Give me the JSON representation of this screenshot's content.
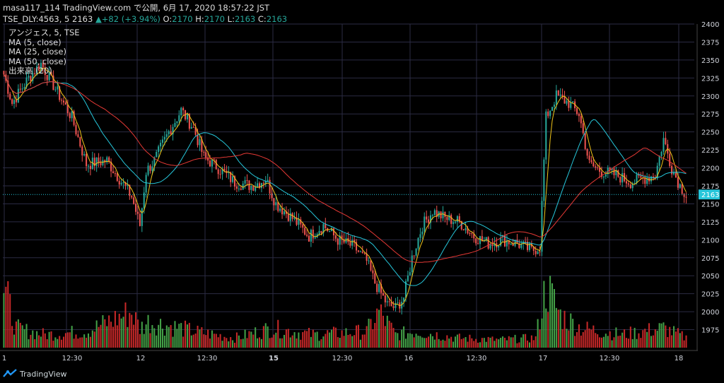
{
  "header": {
    "line1": "masa117_114 TradingView.com で公開, 6月 17, 2020 18:57:22 JST",
    "symbol": "TSE_DLY:4563, 5",
    "price": "2163",
    "arrow": "▲",
    "change": "+82 (+3.94%)",
    "o_label": "O:",
    "o_value": "2170",
    "h_label": "H:",
    "h_value": "2170",
    "l_label": "L:",
    "l_value": "2163",
    "c_label": "C:",
    "c_value": "2163"
  },
  "legend": {
    "instrument": "アンジェス, 5, TSE",
    "ma5": "MA (5, close)",
    "ma25": "MA (25, close)",
    "ma50": "MA (50, close)",
    "volume": "出来高 (20)"
  },
  "brand": {
    "name": "TradingView"
  },
  "colors": {
    "background": "#000000",
    "grid": "#2b2b43",
    "up": "#26a69a",
    "down": "#ef5350",
    "ma5": "#f0c419",
    "ma25": "#26c6da",
    "ma50": "#e53935",
    "last_price": "#26c6da",
    "axis_text": "#d1d4dc"
  },
  "chart_data": {
    "type": "candlestick",
    "y_axis": {
      "ylim": [
        1950,
        2400
      ],
      "ticks": [
        1975,
        2000,
        2025,
        2050,
        2075,
        2100,
        2125,
        2150,
        2175,
        2200,
        2225,
        2250,
        2275,
        2300,
        2325,
        2350,
        2375,
        2400
      ],
      "position": "right"
    },
    "x_axis": {
      "ticks": [
        "1",
        "12:30",
        "12",
        "12:30",
        "15",
        "12:30",
        "16",
        "12:30",
        "17",
        "12:30",
        "18"
      ],
      "bold_ticks": [
        "15"
      ]
    },
    "last_price": 2163,
    "moving_averages": [
      {
        "name": "MA (5, close)",
        "period": 5
      },
      {
        "name": "MA (25, close)",
        "period": 25
      },
      {
        "name": "MA (50, close)",
        "period": 50
      }
    ],
    "volume_series": {
      "name": "出来高 (20)"
    },
    "close_anchors": [
      [
        0,
        2330
      ],
      [
        4,
        2290
      ],
      [
        12,
        2325
      ],
      [
        18,
        2345
      ],
      [
        25,
        2310
      ],
      [
        33,
        2270
      ],
      [
        40,
        2205
      ],
      [
        50,
        2210
      ],
      [
        56,
        2185
      ],
      [
        62,
        2160
      ],
      [
        66,
        2120
      ],
      [
        69,
        2195
      ],
      [
        73,
        2210
      ],
      [
        80,
        2250
      ],
      [
        86,
        2280
      ],
      [
        92,
        2255
      ],
      [
        97,
        2215
      ],
      [
        104,
        2200
      ],
      [
        112,
        2180
      ],
      [
        120,
        2175
      ],
      [
        124,
        2180
      ],
      [
        127,
        2185
      ],
      [
        132,
        2150
      ],
      [
        140,
        2130
      ],
      [
        148,
        2105
      ],
      [
        155,
        2120
      ],
      [
        162,
        2100
      ],
      [
        170,
        2090
      ],
      [
        176,
        2070
      ],
      [
        180,
        2040
      ],
      [
        186,
        2010
      ],
      [
        190,
        2005
      ],
      [
        194,
        2020
      ],
      [
        198,
        2075
      ],
      [
        203,
        2120
      ],
      [
        208,
        2140
      ],
      [
        214,
        2130
      ],
      [
        221,
        2125
      ],
      [
        228,
        2105
      ],
      [
        235,
        2095
      ],
      [
        242,
        2100
      ],
      [
        249,
        2095
      ],
      [
        256,
        2085
      ],
      [
        260,
        2090
      ],
      [
        263,
        2270
      ],
      [
        268,
        2300
      ],
      [
        274,
        2290
      ],
      [
        279,
        2275
      ],
      [
        284,
        2205
      ],
      [
        290,
        2195
      ],
      [
        297,
        2190
      ],
      [
        304,
        2180
      ],
      [
        310,
        2185
      ],
      [
        316,
        2190
      ],
      [
        320,
        2240
      ],
      [
        324,
        2200
      ],
      [
        328,
        2175
      ],
      [
        331,
        2163
      ]
    ],
    "volume_anchors": [
      [
        0,
        0.9
      ],
      [
        6,
        0.3
      ],
      [
        12,
        0.25
      ],
      [
        20,
        0.2
      ],
      [
        40,
        0.25
      ],
      [
        62,
        0.55
      ],
      [
        66,
        0.3
      ],
      [
        70,
        0.4
      ],
      [
        86,
        0.3
      ],
      [
        92,
        0.25
      ],
      [
        112,
        0.15
      ],
      [
        130,
        0.3
      ],
      [
        150,
        0.2
      ],
      [
        176,
        0.25
      ],
      [
        182,
        0.55
      ],
      [
        190,
        0.2
      ],
      [
        200,
        0.25
      ],
      [
        220,
        0.15
      ],
      [
        240,
        0.12
      ],
      [
        258,
        0.15
      ],
      [
        263,
        0.95
      ],
      [
        270,
        0.5
      ],
      [
        280,
        0.3
      ],
      [
        300,
        0.2
      ],
      [
        320,
        0.3
      ],
      [
        331,
        0.15
      ]
    ],
    "total_bars": 332
  }
}
